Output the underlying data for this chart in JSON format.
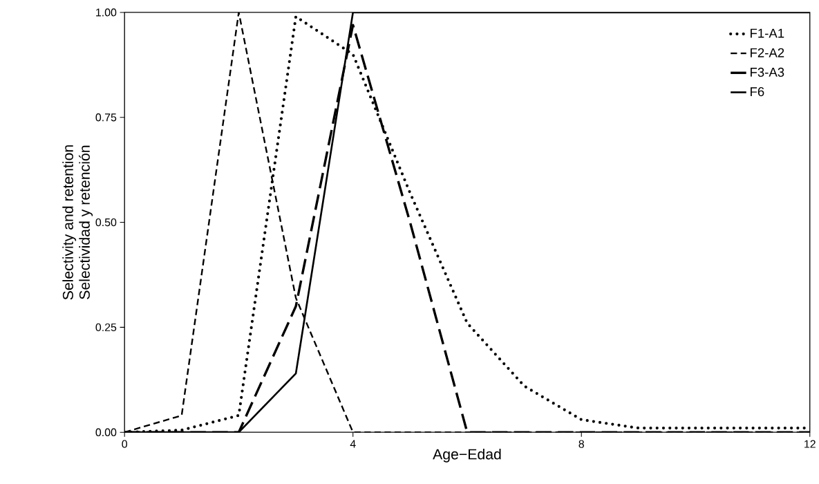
{
  "chart_data": {
    "type": "line",
    "xlabel": "Age−Edad",
    "ylabel": "Selectivity and retention",
    "annotations": [
      "Selectividad y retención"
    ],
    "x": [
      0,
      1,
      2,
      3,
      4,
      5,
      6,
      7,
      8,
      9,
      10,
      11,
      12
    ],
    "series": [
      {
        "name": "F1-A1",
        "color": "#000000",
        "line_style": "dotted",
        "values": [
          0,
          0.005,
          0.04,
          0.99,
          0.9,
          0.57,
          0.26,
          0.11,
          0.03,
          0.01,
          0.01,
          0.01,
          0.01
        ]
      },
      {
        "name": "F2-A2",
        "color": "#000000",
        "line_style": "dashed",
        "values": [
          0,
          0.04,
          1.0,
          0.32,
          0,
          0,
          0,
          0,
          0,
          0,
          0,
          0,
          0
        ]
      },
      {
        "name": "F3-A3",
        "color": "#000000",
        "line_style": "dashed",
        "values": [
          0,
          0,
          0,
          0.3,
          0.97,
          0.5,
          0,
          0,
          0,
          0,
          0,
          0,
          0
        ]
      },
      {
        "name": "F6",
        "color": "#000000",
        "line_style": "solid",
        "values": [
          0,
          0,
          0,
          0.14,
          1,
          1,
          1,
          1,
          1,
          1,
          1,
          1,
          1
        ]
      }
    ],
    "xlim": [
      0,
      12
    ],
    "ylim": [
      0,
      1
    ],
    "xticks": [
      0,
      4,
      8,
      12
    ],
    "yticks": [
      {
        "value": 0,
        "label": "0.00"
      },
      {
        "value": 0.25,
        "label": "0.25"
      },
      {
        "value": 0.5,
        "label": "0.50"
      },
      {
        "value": 0.75,
        "label": "0.75"
      },
      {
        "value": 1,
        "label": "1.00"
      }
    ],
    "grid": false,
    "legend": "top right",
    "marker": "none"
  }
}
